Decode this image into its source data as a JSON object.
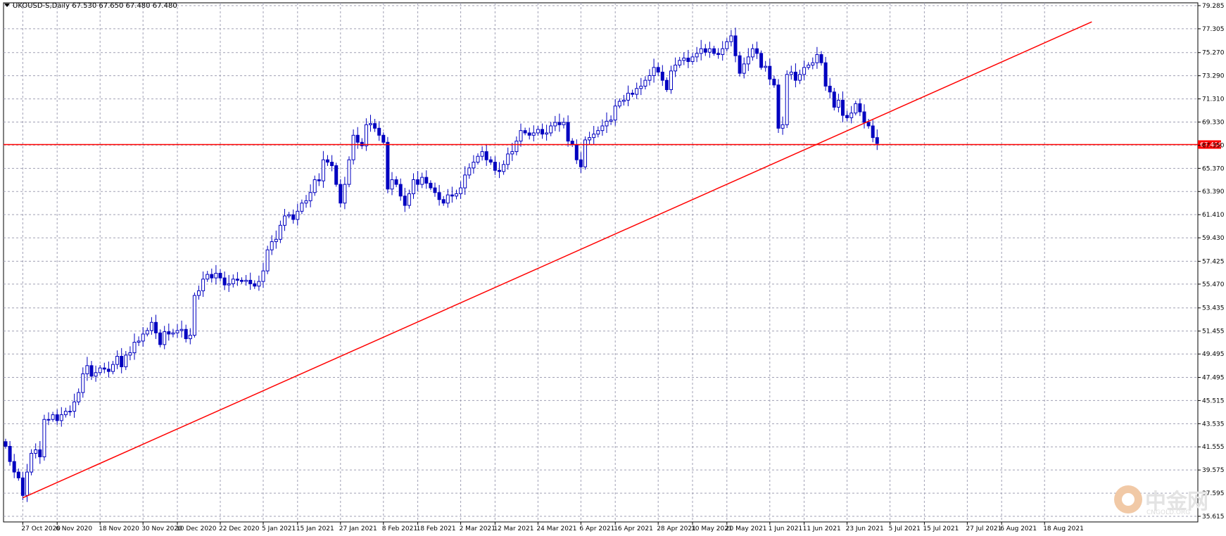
{
  "header": {
    "symbol": "UKOUSD-S,Daily",
    "ohlc": "67.530 67.650 67.480 67.480"
  },
  "watermark": {
    "name": "中金网",
    "domain": "CNGOLD.ORG"
  },
  "colors": {
    "bull": "#0000c0",
    "bear": "#0000c0",
    "line": "#ff0000",
    "grid": "#a0a0b4",
    "tag": "#ff0000"
  },
  "chart_data": {
    "type": "candlestick",
    "y_ticks": [
      "79.285",
      "77.305",
      "75.270",
      "73.290",
      "71.310",
      "69.330",
      "67.350",
      "65.370",
      "63.390",
      "61.410",
      "59.430",
      "57.425",
      "55.470",
      "53.435",
      "51.455",
      "49.495",
      "47.495",
      "45.515",
      "43.535",
      "41.555",
      "39.575",
      "37.595",
      "35.615"
    ],
    "y_tick_values": [
      79.285,
      77.305,
      75.27,
      73.29,
      71.31,
      69.33,
      67.35,
      65.37,
      63.39,
      61.41,
      59.43,
      57.425,
      55.47,
      53.435,
      51.455,
      49.495,
      47.495,
      45.515,
      43.535,
      41.555,
      39.575,
      37.595,
      35.615
    ],
    "x_ticks": [
      "27 Oct 2020",
      "6 Nov 2020",
      "18 Nov 2020",
      "30 Nov 2020",
      "10 Dec 2020",
      "22 Dec 2020",
      "5 Jan 2021",
      "15 Jan 2021",
      "27 Jan 2021",
      "8 Feb 2021",
      "18 Feb 2021",
      "2 Mar 2021",
      "12 Mar 2021",
      "24 Mar 2021",
      "6 Apr 2021",
      "16 Apr 2021",
      "28 Apr 2021",
      "10 May 2021",
      "20 May 2021",
      "1 Jun 2021",
      "11 Jun 2021",
      "23 Jun 2021",
      "5 Jul 2021",
      "15 Jul 2021",
      "27 Jul 2021",
      "6 Aug 2021",
      "18 Aug 2021"
    ],
    "x_tick_bars": [
      4,
      12,
      22,
      32,
      40,
      50,
      60,
      68,
      78,
      88,
      96,
      106,
      114,
      124,
      134,
      142,
      152,
      160,
      168,
      178,
      186,
      196,
      206,
      214,
      224,
      232,
      242
    ],
    "horizontal_line": {
      "value": 67.406,
      "label": "67.406"
    },
    "trend_line": {
      "from": {
        "bar": 4,
        "value": 37.2
      },
      "to": {
        "bar": 253,
        "value": 77.9
      }
    },
    "closes": [
      41.6,
      40.3,
      39.4,
      38.9,
      37.4,
      39.4,
      41.0,
      41.3,
      40.7,
      43.9,
      43.9,
      44.3,
      43.8,
      44.3,
      44.6,
      44.6,
      45.4,
      46.2,
      47.8,
      48.5,
      47.6,
      47.9,
      48.3,
      48.2,
      48.0,
      48.6,
      49.3,
      48.4,
      49.4,
      49.6,
      50.5,
      50.6,
      51.2,
      51.5,
      52.2,
      51.3,
      50.3,
      51.4,
      51.2,
      51.3,
      51.5,
      51.6,
      50.8,
      51.1,
      54.5,
      54.9,
      55.9,
      56.3,
      56.0,
      56.4,
      56.0,
      55.4,
      55.5,
      55.9,
      55.8,
      55.7,
      55.8,
      55.5,
      55.3,
      55.7,
      56.6,
      58.4,
      59.1,
      59.3,
      60.5,
      61.3,
      61.4,
      61.0,
      61.7,
      62.4,
      62.6,
      63.3,
      64.4,
      64.3,
      66.1,
      65.9,
      65.6,
      64.0,
      62.4,
      64.0,
      66.1,
      68.2,
      67.6,
      67.3,
      69.1,
      69.2,
      68.8,
      68.2,
      67.6,
      63.6,
      64.4,
      64.0,
      63.0,
      62.2,
      63.2,
      64.4,
      64.0,
      64.6,
      64.1,
      63.7,
      63.3,
      62.7,
      62.4,
      63.1,
      63.0,
      63.2,
      63.7,
      64.8,
      65.4,
      65.9,
      66.4,
      66.8,
      66.1,
      65.9,
      65.2,
      65.1,
      65.7,
      66.6,
      66.8,
      67.7,
      68.6,
      68.4,
      68.2,
      68.4,
      68.7,
      68.3,
      68.4,
      69.0,
      69.3,
      69.1,
      69.3,
      67.7,
      67.4,
      66.1,
      65.5,
      67.8,
      68.0,
      68.3,
      68.6,
      69.0,
      69.4,
      69.5,
      70.7,
      71.1,
      71.2,
      71.8,
      71.7,
      72.2,
      72.4,
      72.9,
      73.3,
      74.0,
      73.6,
      72.9,
      72.1,
      73.7,
      74.2,
      74.6,
      74.8,
      74.5,
      74.9,
      75.2,
      75.6,
      75.3,
      75.6,
      75.2,
      75.1,
      75.6,
      76.2,
      76.7,
      75.0,
      73.5,
      74.3,
      74.9,
      75.6,
      75.2,
      74.0,
      74.1,
      73.0,
      72.5,
      68.8,
      69.1,
      73.4,
      73.6,
      72.9,
      73.4,
      74.0,
      74.2,
      74.4,
      75.1,
      74.4,
      72.4,
      71.9,
      70.6,
      71.2,
      69.9,
      69.7,
      70.1,
      70.9,
      70.2,
      69.3,
      69.0,
      68.0,
      67.5
    ]
  }
}
